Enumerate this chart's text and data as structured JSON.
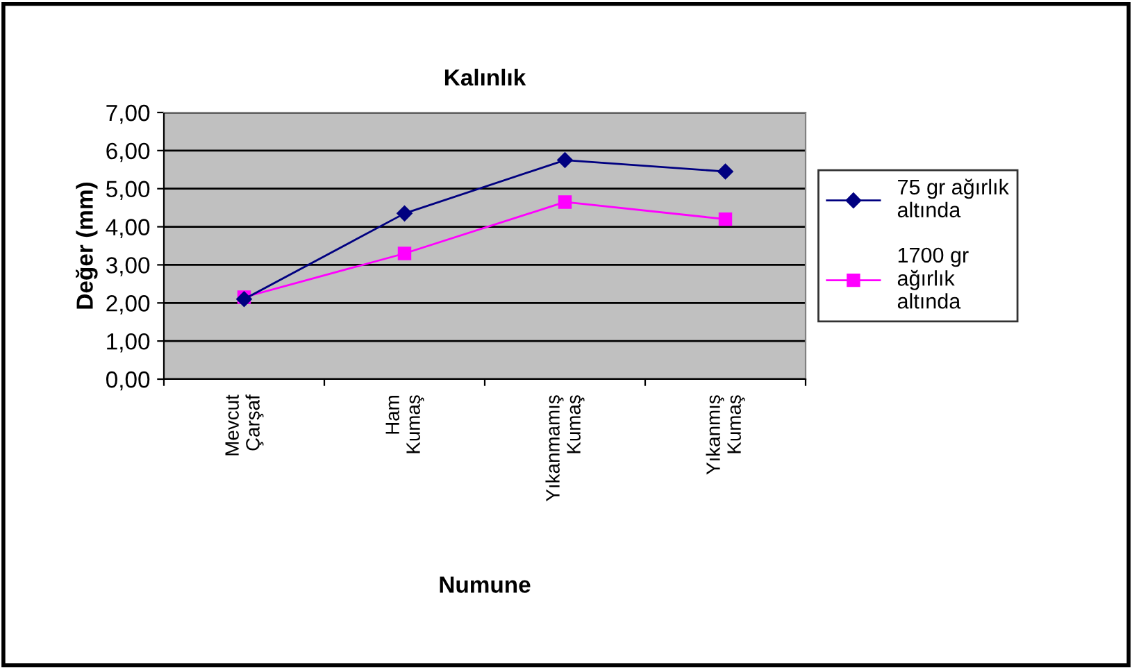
{
  "chart_data": {
    "type": "line",
    "title": "Kalınlık",
    "xlabel": "Numune",
    "ylabel": "Değer (mm)",
    "categories": [
      "Mevcut\nÇarşaf",
      "Ham\nKumaş",
      "Yıkanmamış\nKumaş",
      "Yıkanmış\nKumaş"
    ],
    "series": [
      {
        "name": "75 gr ağırlık\naltında",
        "color": "#000080",
        "marker": "diamond",
        "values": [
          2.1,
          4.35,
          5.75,
          5.45
        ]
      },
      {
        "name": "1700 gr\nağırlık\naltında",
        "color": "#ff00ff",
        "marker": "square",
        "values": [
          2.15,
          3.3,
          4.65,
          4.2
        ]
      }
    ],
    "ylim": [
      0,
      7
    ],
    "yticks": [
      {
        "value": 0,
        "label": "0,00"
      },
      {
        "value": 1,
        "label": "1,00"
      },
      {
        "value": 2,
        "label": "2,00"
      },
      {
        "value": 3,
        "label": "3,00"
      },
      {
        "value": 4,
        "label": "4,00"
      },
      {
        "value": 5,
        "label": "5,00"
      },
      {
        "value": 6,
        "label": "6,00"
      },
      {
        "value": 7,
        "label": "7,00"
      }
    ],
    "grid": "y",
    "legend": "right",
    "line_style": "solid"
  }
}
